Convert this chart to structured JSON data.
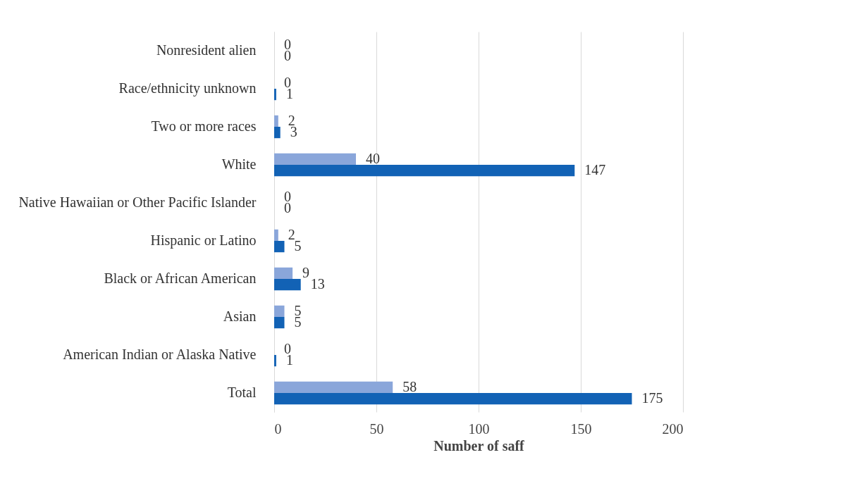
{
  "chart_data": {
    "type": "bar",
    "orientation": "horizontal",
    "xlabel": "Number of saff",
    "categories": [
      "Nonresident alien",
      "Race/ethnicity unknown",
      "Two or more races",
      "White",
      "Native Hawaiian or Other Pacific Islander",
      "Hispanic or Latino",
      "Black or African American",
      "Asian",
      "American Indian or Alaska Native",
      "Total"
    ],
    "series": [
      {
        "color": "#8aa6da",
        "values": [
          0,
          0,
          2,
          40,
          0,
          2,
          9,
          5,
          0,
          58
        ]
      },
      {
        "color": "#1262b5",
        "values": [
          0,
          1,
          3,
          147,
          0,
          5,
          13,
          5,
          1,
          175
        ]
      }
    ],
    "xlim": [
      0,
      200
    ],
    "xticks": [
      0,
      50,
      100,
      150,
      200
    ],
    "grid": "x",
    "data_labels": true
  }
}
